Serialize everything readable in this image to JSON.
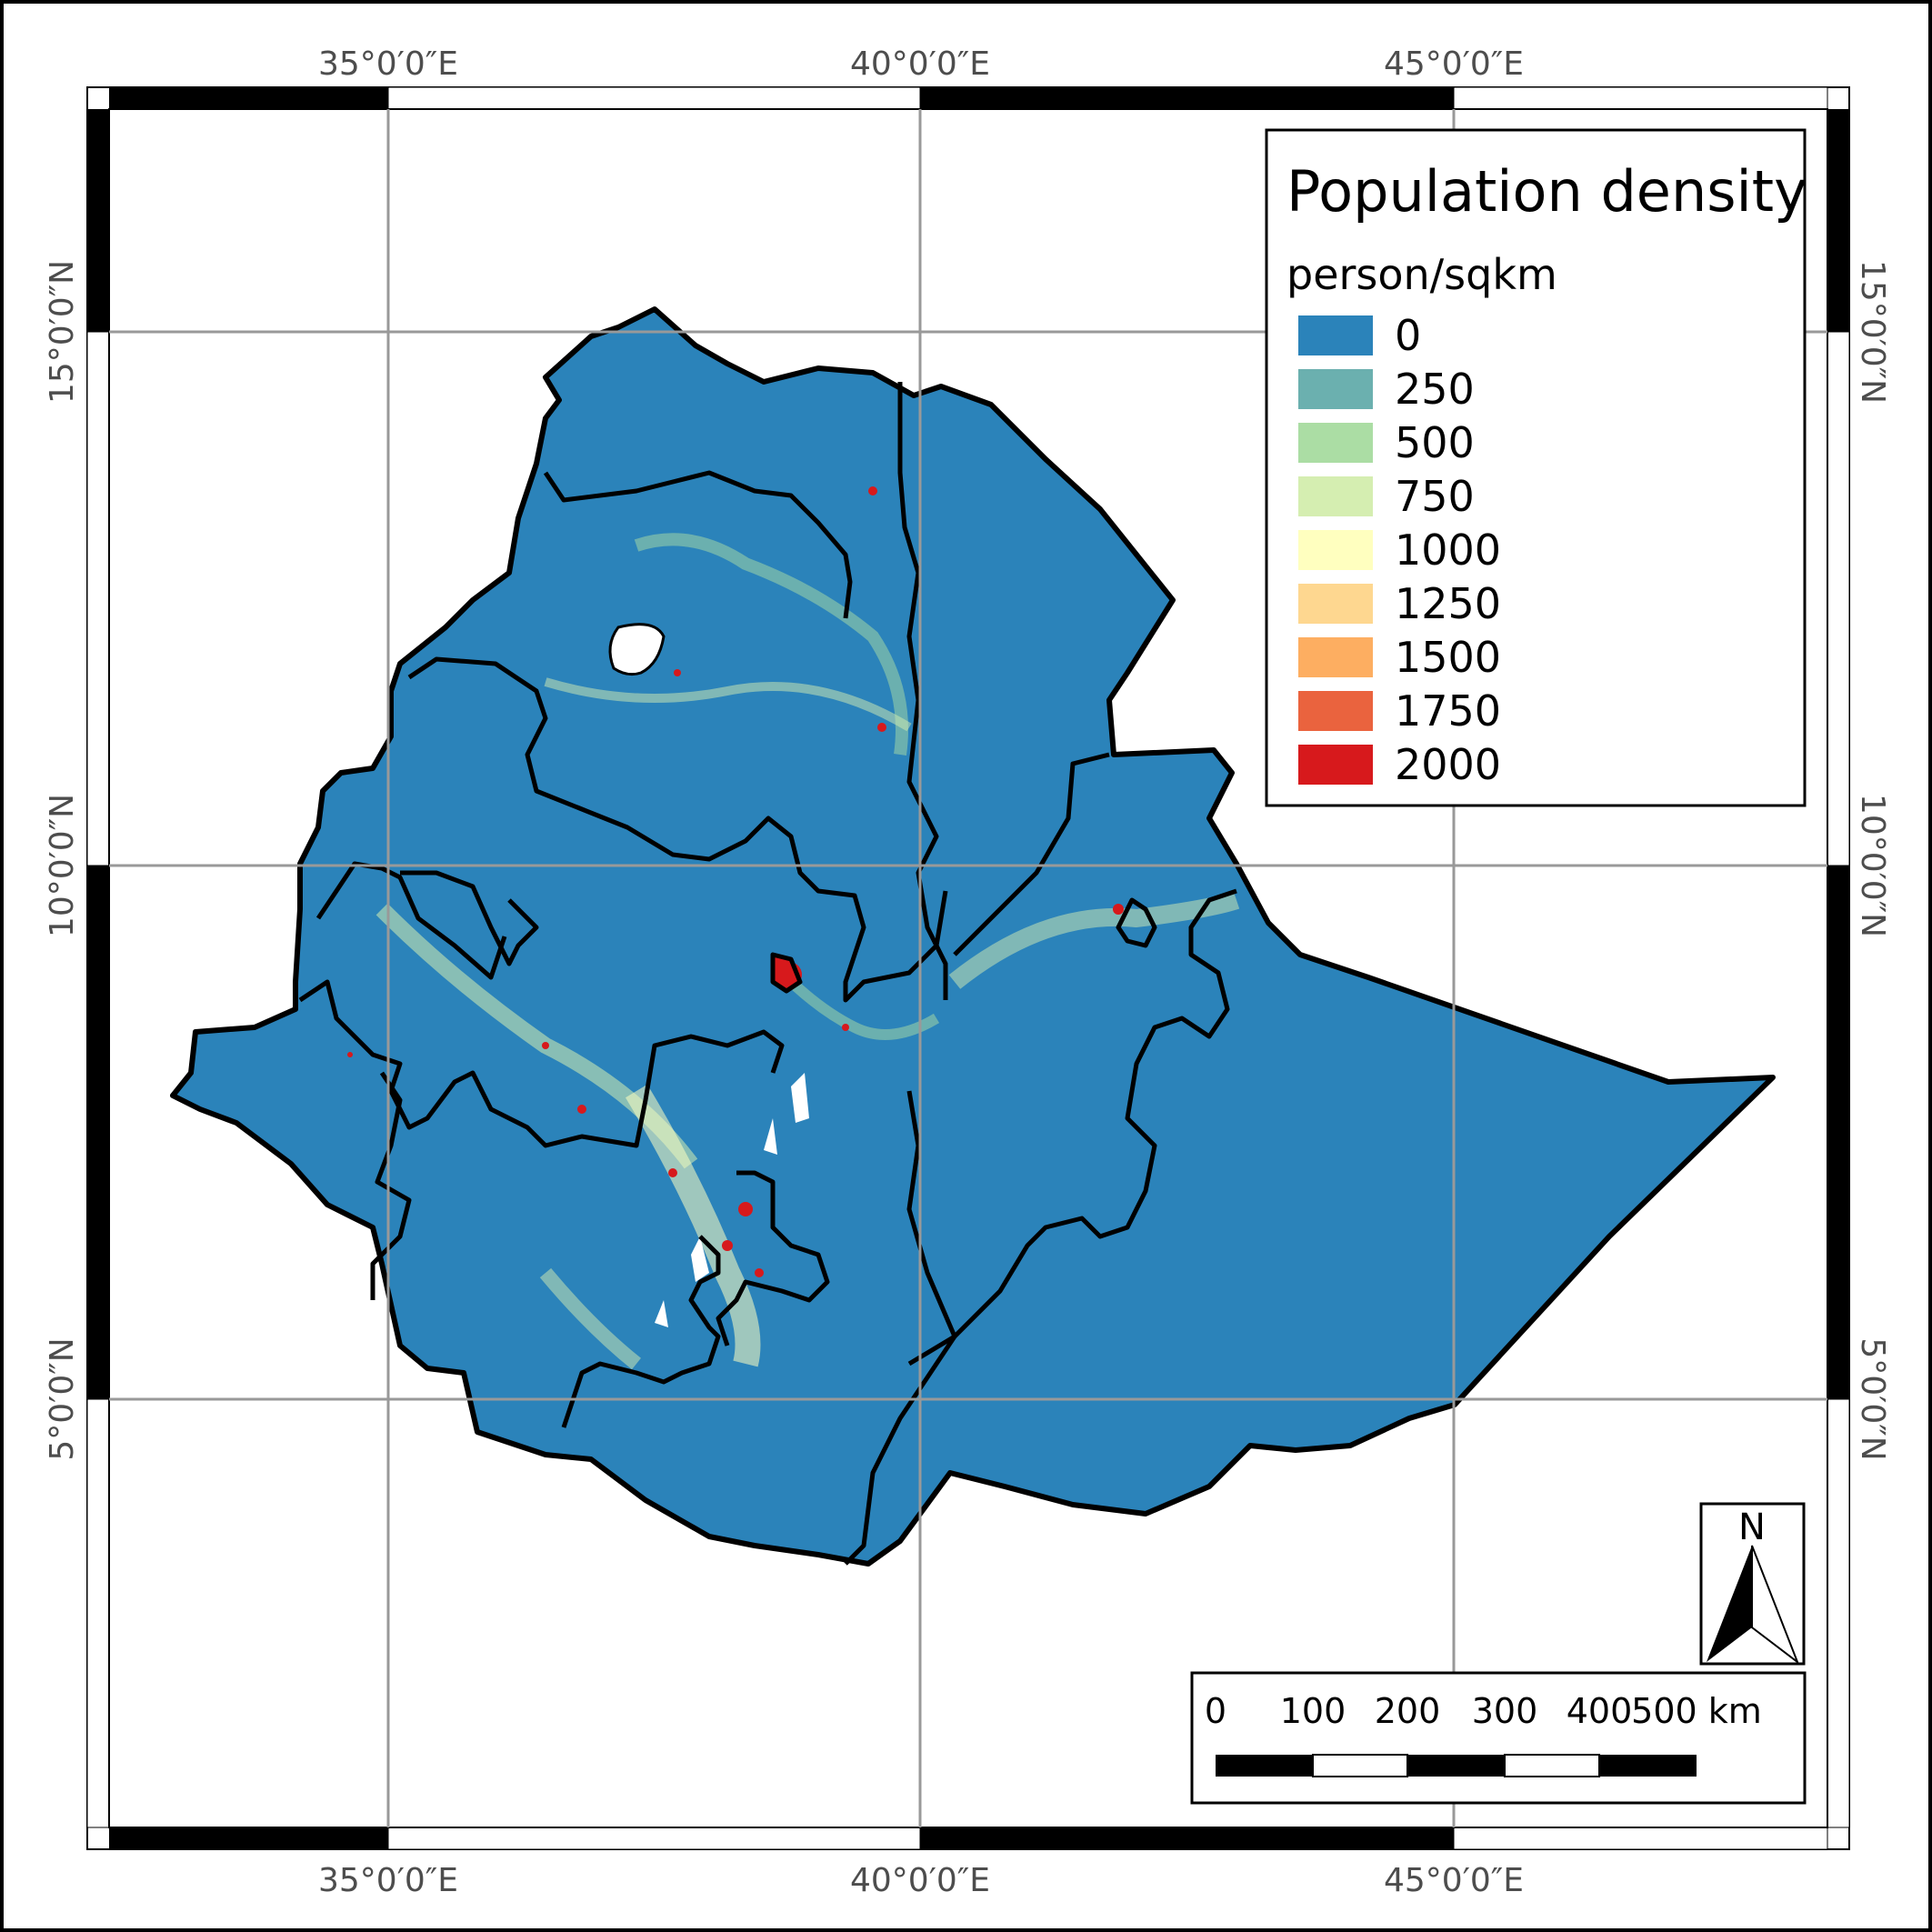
{
  "map": {
    "legend": {
      "title": "Population density",
      "unit": "person/sqkm",
      "classes": [
        {
          "value": "0",
          "color": "#2b83ba"
        },
        {
          "value": "250",
          "color": "#6bb0af"
        },
        {
          "value": "500",
          "color": "#abdda4"
        },
        {
          "value": "750",
          "color": "#d5eeb1"
        },
        {
          "value": "1000",
          "color": "#ffffbf"
        },
        {
          "value": "1250",
          "color": "#fed790"
        },
        {
          "value": "1500",
          "color": "#fdae61"
        },
        {
          "value": "1750",
          "color": "#ea633e"
        },
        {
          "value": "2000",
          "color": "#d7191c"
        }
      ]
    },
    "longitude_labels": [
      "35°0′0″E",
      "40°0′0″E",
      "45°0′0″E"
    ],
    "latitude_labels": [
      "15°0′0″N",
      "10°0′0″N",
      "5°0′0″N"
    ],
    "scale_bar": {
      "labels": [
        "0",
        "100",
        "200",
        "300",
        "400",
        "500 km"
      ]
    },
    "north_arrow": {
      "label": "N",
      "icon": "north-arrow-icon"
    },
    "colors": {
      "background": "#2b83ba",
      "border": "#000000",
      "grid": "#999999"
    }
  }
}
